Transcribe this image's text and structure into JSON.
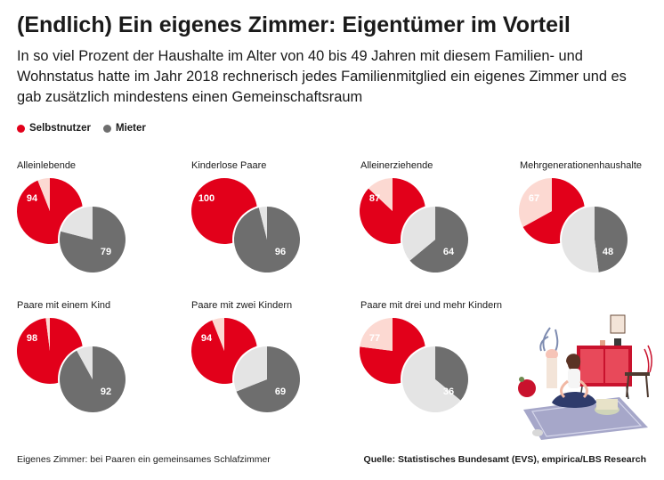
{
  "title": "(Endlich) Ein eigenes Zimmer: Eigentümer im Vorteil",
  "subtitle": "In so viel Prozent der Haushalte im Alter von 40 bis 49 Jahren mit diesem Familien- und Wohnstatus hatte im Jahr 2018 rechnerisch jedes Familienmitglied ein eigenes Zimmer und es gab zusätzlich mindestens einen Gemeinschaftsraum",
  "legend": [
    {
      "label": "Selbstnutzer",
      "color": "#e2001a"
    },
    {
      "label": "Mieter",
      "color": "#6e6e6e"
    }
  ],
  "colors": {
    "owner": "#e2001a",
    "owner_remainder": "#fcd9d2",
    "renter": "#6e6e6e",
    "renter_remainder": "#e4e4e4"
  },
  "chart_data": {
    "type": "pie",
    "unit": "%",
    "series": [
      "Selbstnutzer",
      "Mieter"
    ],
    "groups": [
      {
        "label": "Alleinlebende",
        "Selbstnutzer": 94,
        "Mieter": 79
      },
      {
        "label": "Kinderlose Paare",
        "Selbstnutzer": 100,
        "Mieter": 96
      },
      {
        "label": "Alleinerziehende",
        "Selbstnutzer": 87,
        "Mieter": 64
      },
      {
        "label": "Mehrgenerationenhaushalte",
        "Selbstnutzer": 67,
        "Mieter": 48
      },
      {
        "label": "Paare mit einem Kind",
        "Selbstnutzer": 98,
        "Mieter": 92
      },
      {
        "label": "Paare mit zwei Kindern",
        "Selbstnutzer": 94,
        "Mieter": 69
      },
      {
        "label": "Paare mit drei und mehr Kindern",
        "Selbstnutzer": 77,
        "Mieter": 36
      }
    ]
  },
  "footnote": "Eigenes Zimmer: bei Paaren ein gemeinsames Schlafzimmer",
  "source": "Quelle: Statistisches Bundesamt (EVS), empirica/LBS Research"
}
